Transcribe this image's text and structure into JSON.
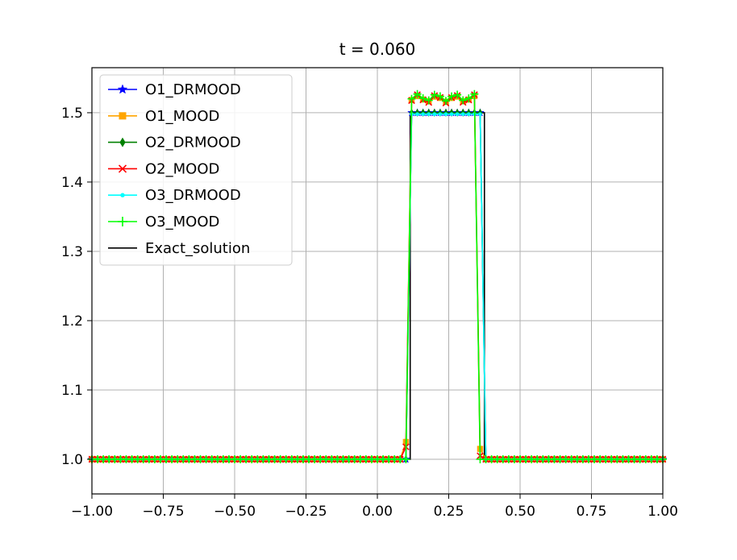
{
  "chart_data": {
    "type": "line",
    "title": "t = 0.060",
    "xlabel": "",
    "ylabel": "",
    "xlim": [
      -1.0,
      1.0
    ],
    "ylim": [
      0.95,
      1.565
    ],
    "grid": true,
    "legend_position": "upper-left",
    "x_ticks": [
      -1.0,
      -0.75,
      -0.5,
      -0.25,
      0.0,
      0.25,
      0.5,
      0.75,
      1.0
    ],
    "x_tick_labels": [
      "−1.00",
      "−0.75",
      "−0.50",
      "−0.25",
      "0.00",
      "0.25",
      "0.50",
      "0.75",
      "1.00"
    ],
    "y_ticks": [
      1.0,
      1.1,
      1.2,
      1.3,
      1.4,
      1.5
    ],
    "y_tick_labels": [
      "1.0",
      "1.1",
      "1.2",
      "1.3",
      "1.4",
      "1.5"
    ],
    "series": [
      {
        "name": "O1_DRMOOD",
        "color": "#0000ff",
        "marker": "star",
        "profile": {
          "left": 0.115,
          "right": 0.37,
          "level": 1.5,
          "ripple": 0.0,
          "left_over": 0.0,
          "right_over": 0.0
        }
      },
      {
        "name": "O1_MOOD",
        "color": "#ffa500",
        "marker": "square",
        "profile": {
          "left": 0.115,
          "right": 0.345,
          "level": 1.52,
          "ripple": 0.004,
          "left_over": 0.025,
          "right_over": 0.015
        }
      },
      {
        "name": "O2_DRMOOD",
        "color": "#008000",
        "marker": "diamond",
        "profile": {
          "left": 0.115,
          "right": 0.37,
          "level": 1.5,
          "ripple": 0.0,
          "left_over": 0.0,
          "right_over": 0.0
        }
      },
      {
        "name": "O2_MOOD",
        "color": "#ff0000",
        "marker": "x",
        "profile": {
          "left": 0.115,
          "right": 0.345,
          "level": 1.52,
          "ripple": 0.006,
          "left_over": 0.018,
          "right_over": 0.005
        }
      },
      {
        "name": "O3_DRMOOD",
        "color": "#00ffff",
        "marker": "dot",
        "profile": {
          "left": 0.115,
          "right": 0.37,
          "level": 1.498,
          "ripple": 0.0,
          "left_over": 0.0,
          "right_over": 0.0
        }
      },
      {
        "name": "O3_MOOD",
        "color": "#00ff00",
        "marker": "plus",
        "profile": {
          "left": 0.115,
          "right": 0.345,
          "level": 1.522,
          "ripple": 0.005,
          "left_over": 0.0,
          "right_over": 0.0
        }
      },
      {
        "name": "Exact_solution",
        "color": "#000000",
        "marker": "none",
        "points": [
          [
            -1.0,
            1.0
          ],
          [
            0.115,
            1.0
          ],
          [
            0.115,
            1.5
          ],
          [
            0.375,
            1.5
          ],
          [
            0.375,
            1.0
          ],
          [
            1.0,
            1.0
          ]
        ]
      }
    ]
  }
}
